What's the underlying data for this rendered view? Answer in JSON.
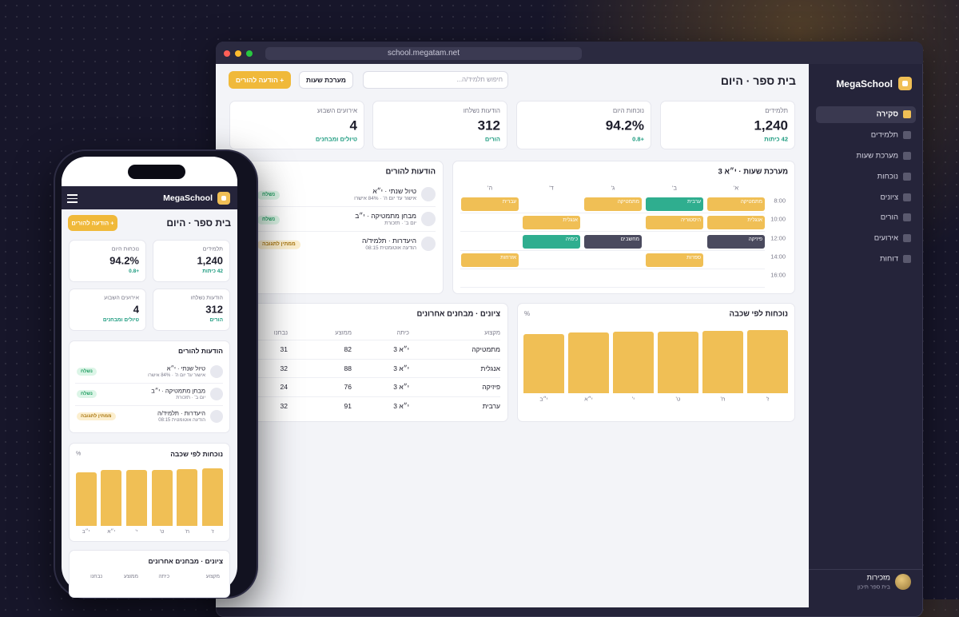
{
  "browser": {
    "url": "school.megatam.net"
  },
  "sidebar": {
    "brand": "MegaSchool",
    "nav": [
      "סקירה",
      "תלמידים",
      "מערכת שעות",
      "נוכחות",
      "ציונים",
      "הורים",
      "אירועים",
      "דוחות"
    ]
  },
  "user": {
    "name": "מזכירות",
    "role": "בית ספר תיכון"
  },
  "header": {
    "title": "בית ספר · היום",
    "search_placeholder": "חיפוש תלמיד/ה...",
    "schedule_button": "מערכת שעות",
    "notify_button": "+ הודעה להורים"
  },
  "stats": [
    {
      "label": "תלמידים",
      "value": "1,240",
      "sub": "42 כיתות"
    },
    {
      "label": "נוכחות היום",
      "value": "94.2%",
      "sub": "+0.8"
    },
    {
      "label": "הודעות נשלחו",
      "value": "312",
      "sub": "הורים"
    },
    {
      "label": "אירועים השבוע",
      "value": "4",
      "sub": "טיולים ומבחנים"
    }
  ],
  "schedule": {
    "title": "מערכת שעות · י״א 3",
    "days": [
      "א'",
      "ב'",
      "ג'",
      "ד'",
      "ה'"
    ],
    "rows": [
      {
        "time": "8:00",
        "cells": [
          {
            "subject": "מתמטיקה",
            "color": "#f0bf55"
          },
          {
            "subject": "ערבית",
            "color": "#2fae8f"
          },
          {
            "subject": "מתמטיקה",
            "color": "#f0bf55"
          },
          null,
          {
            "subject": "עברית",
            "color": "#f0bf55"
          }
        ]
      },
      {
        "time": "10:00",
        "cells": [
          {
            "subject": "אנגלית",
            "color": "#f0bf55"
          },
          {
            "subject": "היסטוריה",
            "color": "#f0bf55"
          },
          null,
          {
            "subject": "אנגלית",
            "color": "#f0bf55"
          },
          null
        ]
      },
      {
        "time": "12:00",
        "cells": [
          {
            "subject": "פיזיקה",
            "color": "#4a4a5e"
          },
          null,
          {
            "subject": "מחשבים",
            "color": "#4a4a5e"
          },
          {
            "subject": "כימיה",
            "color": "#2fae8f"
          },
          null
        ]
      },
      {
        "time": "14:00",
        "cells": [
          null,
          {
            "subject": "ספרות",
            "color": "#f0bf55"
          },
          null,
          null,
          {
            "subject": "אזרחות",
            "color": "#f0bf55"
          }
        ]
      },
      {
        "time": "16:00",
        "cells": [
          null,
          null,
          null,
          null,
          null
        ]
      }
    ]
  },
  "notices": {
    "title": "הודעות להורים",
    "items": [
      {
        "title": "טיול שנתי · י״א",
        "sub": "אישור עד יום ה' · 84% אישרו",
        "status": "נשלח",
        "status_color": "#1f9d60",
        "status_bg": "#dcf5e7"
      },
      {
        "title": "מבחן מתמטיקה · י״ב",
        "sub": "יום ב' · תזכורת",
        "status": "נשלח",
        "status_color": "#1f9d60",
        "status_bg": "#dcf5e7"
      },
      {
        "title": "היעדרות · תלמיד/ה",
        "sub": "הודעה אוטומטית 08:15",
        "status": "ממתין לתגובה",
        "status_color": "#a8740c",
        "status_bg": "#fcefcf"
      }
    ]
  },
  "attendance": {
    "type": "bar",
    "title": "נוכחות לפי שכבה",
    "unit": "%",
    "categories": [
      "ז'",
      "ח'",
      "ט'",
      "י'",
      "י״א",
      "י״ב"
    ],
    "values": [
      96,
      95,
      94,
      94,
      93,
      90
    ],
    "ylim": [
      0,
      100
    ],
    "color": "#f0bf55"
  },
  "grades": {
    "title": "ציונים · מבחנים אחרונים",
    "columns": [
      "מקצוע",
      "כיתה",
      "ממוצע",
      "נבחנו"
    ],
    "rows": [
      [
        "מתמטיקה",
        "י״א 3",
        82,
        31
      ],
      [
        "אנגלית",
        "י״א 3",
        88,
        32
      ],
      [
        "פיזיקה",
        "י״א 3",
        76,
        24
      ],
      [
        "ערבית",
        "י״א 3",
        91,
        32
      ]
    ]
  }
}
